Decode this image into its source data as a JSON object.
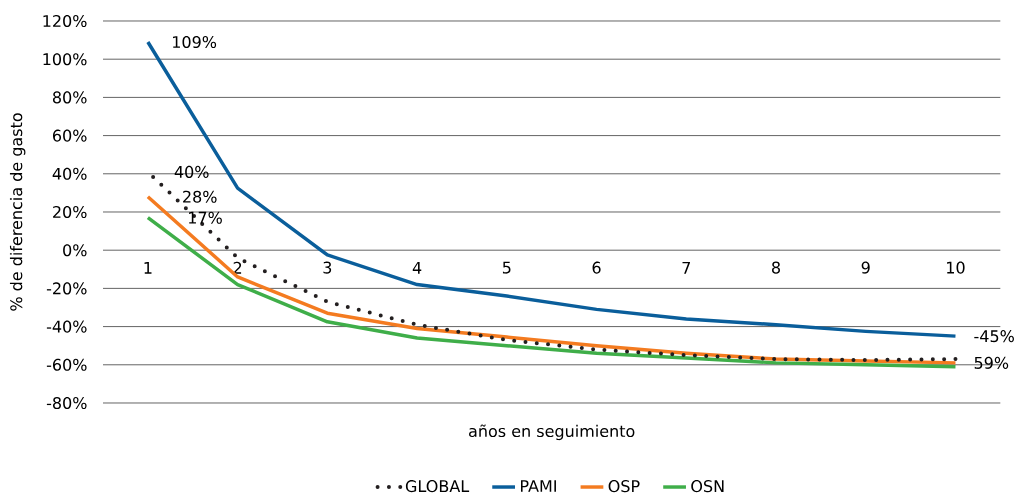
{
  "chart_data": {
    "type": "line",
    "xlabel": "años en seguimiento",
    "ylabel": "% de diferencia de gasto",
    "categories": [
      "1",
      "2",
      "3",
      "4",
      "5",
      "6",
      "7",
      "8",
      "9",
      "10"
    ],
    "series": [
      {
        "name": "GLOBAL",
        "color": "#231f20",
        "line_style": "dotted",
        "values": [
          41,
          -4,
          -27,
          -39,
          -47,
          -52,
          -55,
          -57,
          -57.5,
          -57
        ]
      },
      {
        "name": "PAMI",
        "color": "#0a5e9b",
        "values": [
          109,
          32.5,
          -2.5,
          -18,
          -24,
          -31,
          -36,
          -39,
          -42.5,
          -45
        ]
      },
      {
        "name": "OSP",
        "color": "#f47b20",
        "values": [
          28,
          -14,
          -33,
          -41,
          -45.5,
          -50,
          -54,
          -57,
          -58,
          -59
        ]
      },
      {
        "name": "OSN",
        "color": "#3fae49",
        "values": [
          17,
          -18,
          -37.5,
          -46,
          -50,
          -54,
          -56.5,
          -59,
          -60,
          -61
        ]
      }
    ],
    "ylim": [
      -80,
      120
    ],
    "yticks": [
      {
        "value": -80,
        "label": "-80%"
      },
      {
        "value": -60,
        "label": "-60%"
      },
      {
        "value": -40,
        "label": "-40%"
      },
      {
        "value": -20,
        "label": "-20%"
      },
      {
        "value": 0,
        "label": "0%"
      },
      {
        "value": 20,
        "label": "20%"
      },
      {
        "value": 40,
        "label": "40%"
      },
      {
        "value": 60,
        "label": "60%"
      },
      {
        "value": 80,
        "label": "80%"
      },
      {
        "value": 100,
        "label": "100%"
      },
      {
        "value": 120,
        "label": "120%"
      }
    ],
    "grid": "y",
    "legend": "bottom",
    "marker": "none",
    "line_style": "solid",
    "annotations": [
      {
        "text": "109%",
        "x": "1",
        "y": 109
      },
      {
        "text": "40%",
        "x": "1",
        "y": 41
      },
      {
        "text": "28%",
        "x": "1",
        "y": 28
      },
      {
        "text": "17%",
        "x": "1",
        "y": 17
      },
      {
        "text": "-45%",
        "x": "10",
        "y": -45
      },
      {
        "text": "59%",
        "x": "10",
        "y": -59
      }
    ]
  }
}
